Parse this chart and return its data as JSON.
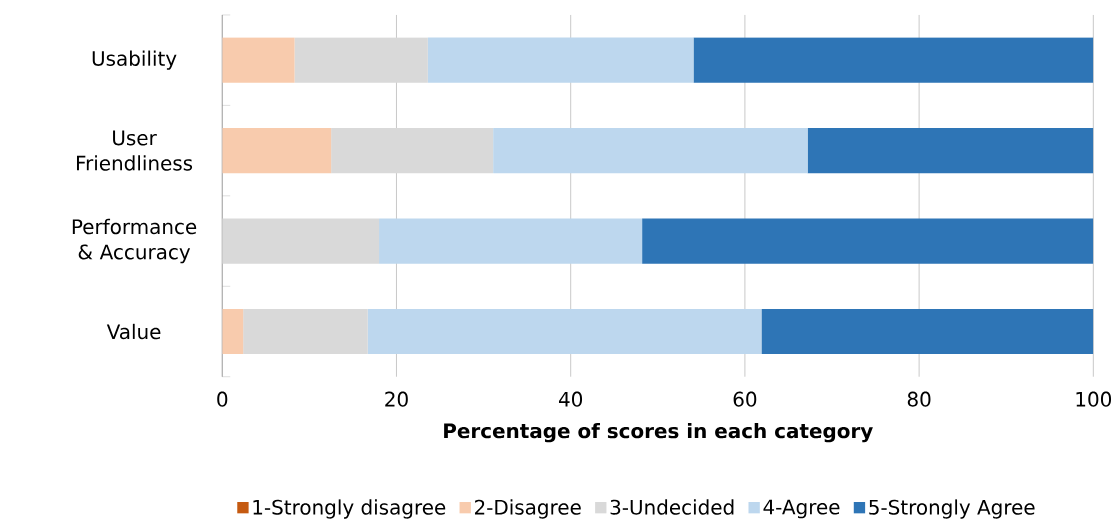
{
  "chart_data": {
    "type": "bar",
    "orientation": "horizontal",
    "stacked": true,
    "categories": [
      "Usability",
      "User Friendliness",
      "Performance & Accuracy",
      "Value"
    ],
    "series": [
      {
        "name": "1-Strongly disagree",
        "color": "#c55a11",
        "values": [
          0,
          0,
          0,
          0
        ]
      },
      {
        "name": "2-Disagree",
        "color": "#f8cbad",
        "values": [
          8.3,
          12.5,
          0,
          2.4
        ]
      },
      {
        "name": "3-Undecided",
        "color": "#d9d9d9",
        "values": [
          15.3,
          18.6,
          18.0,
          14.3
        ]
      },
      {
        "name": "4-Agree",
        "color": "#bdd7ee",
        "values": [
          30.5,
          36.1,
          30.2,
          45.2
        ]
      },
      {
        "name": "5-Strongly Agree",
        "color": "#2e75b6",
        "values": [
          45.9,
          32.8,
          51.8,
          38.1
        ]
      }
    ],
    "xlim": [
      0,
      100
    ],
    "xticks": [
      0,
      20,
      40,
      60,
      80,
      100
    ],
    "xlabel": "Percentage of scores in each category",
    "grid": "x",
    "legend": "bottom"
  }
}
